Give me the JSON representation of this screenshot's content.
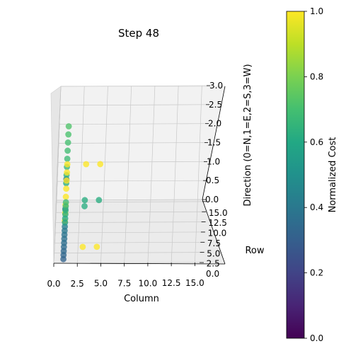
{
  "chart_data": {
    "type": "scatter",
    "projection": "3d",
    "title": "Step 48",
    "xlabel": "Column",
    "ylabel": "Row",
    "zlabel": "Direction (0=N,1=E,2=S,3=W)",
    "xlim": [
      0,
      15.5
    ],
    "ylim": [
      0,
      15.5
    ],
    "zlim": [
      0,
      3
    ],
    "x_ticks": [
      "0.0",
      "2.5",
      "5.0",
      "7.5",
      "10.0",
      "12.5",
      "15.0"
    ],
    "y_ticks": [
      "0.0",
      "2.5",
      "5.0",
      "7.5",
      "10.0",
      "12.5",
      "15.0"
    ],
    "z_ticks": [
      "0.0",
      "0.5",
      "1.0",
      "1.5",
      "2.0",
      "2.5",
      "3.0"
    ],
    "grid": true,
    "colormap": "viridis",
    "colorbar": {
      "label": "Normalized Cost",
      "min": 0.0,
      "max": 1.0,
      "ticks": [
        "0.0",
        "0.2",
        "0.4",
        "0.6",
        "0.8",
        "1.0"
      ]
    },
    "points": [
      {
        "x": 1.0,
        "y": 1,
        "z": 0.0,
        "c": 0.32
      },
      {
        "x": 1.0,
        "y": 2,
        "z": 0.0,
        "c": 0.33
      },
      {
        "x": 1.0,
        "y": 3,
        "z": 0.0,
        "c": 0.34
      },
      {
        "x": 1.0,
        "y": 4,
        "z": 0.0,
        "c": 0.35
      },
      {
        "x": 1.0,
        "y": 5,
        "z": 0.0,
        "c": 0.36
      },
      {
        "x": 1.0,
        "y": 6,
        "z": 0.0,
        "c": 0.37
      },
      {
        "x": 1.0,
        "y": 7,
        "z": 0.0,
        "c": 0.38
      },
      {
        "x": 1.0,
        "y": 8,
        "z": 0.0,
        "c": 0.4
      },
      {
        "x": 1.0,
        "y": 9,
        "z": 0.0,
        "c": 0.42
      },
      {
        "x": 1.0,
        "y": 10,
        "z": 0.0,
        "c": 0.55
      },
      {
        "x": 1.0,
        "y": 11,
        "z": 0.0,
        "c": 0.6
      },
      {
        "x": 1.0,
        "y": 12,
        "z": 0.0,
        "c": 0.62
      },
      {
        "x": 1.0,
        "y": 13,
        "z": 0.0,
        "c": 0.64
      },
      {
        "x": 1.0,
        "y": 14,
        "z": 0.0,
        "c": 0.66
      },
      {
        "x": 1.0,
        "y": 15,
        "z": 0.0,
        "c": 0.68
      },
      {
        "x": 3.0,
        "y": 4,
        "z": 0.0,
        "c": 1.0
      },
      {
        "x": 4.5,
        "y": 4,
        "z": 0.0,
        "c": 1.0
      },
      {
        "x": 3.0,
        "y": 14,
        "z": 0.0,
        "c": 0.62
      },
      {
        "x": 3.0,
        "y": 15.5,
        "z": 0.0,
        "c": 0.62
      },
      {
        "x": 4.5,
        "y": 15.5,
        "z": 0.0,
        "c": 0.62
      },
      {
        "x": 1.0,
        "y": 1,
        "z": 1.0,
        "c": 1.0
      },
      {
        "x": 1.0,
        "y": 3,
        "z": 1.0,
        "c": 1.0
      },
      {
        "x": 1.0,
        "y": 5,
        "z": 1.0,
        "c": 1.0
      },
      {
        "x": 1.0,
        "y": 7,
        "z": 1.0,
        "c": 1.0
      },
      {
        "x": 1.0,
        "y": 9,
        "z": 1.0,
        "c": 1.0
      },
      {
        "x": 1.0,
        "y": 11,
        "z": 1.0,
        "c": 1.0
      },
      {
        "x": 1.0,
        "y": 13,
        "z": 1.0,
        "c": 1.0
      },
      {
        "x": 1.0,
        "y": 15,
        "z": 1.0,
        "c": 1.0
      },
      {
        "x": 1.0,
        "y": 4,
        "z": 1.0,
        "c": 0.4
      },
      {
        "x": 3.0,
        "y": 15,
        "z": 1.0,
        "c": 1.0
      },
      {
        "x": 4.5,
        "y": 15,
        "z": 1.0,
        "c": 1.0
      },
      {
        "x": 1.0,
        "y": 2,
        "z": 2.0,
        "c": 0.4
      },
      {
        "x": 1.0,
        "y": 1,
        "z": 2.0,
        "c": 0.62
      },
      {
        "x": 1.0,
        "y": 3,
        "z": 2.0,
        "c": 0.64
      },
      {
        "x": 1.0,
        "y": 5,
        "z": 2.0,
        "c": 0.66
      },
      {
        "x": 1.0,
        "y": 7,
        "z": 2.0,
        "c": 0.68
      },
      {
        "x": 1.0,
        "y": 9,
        "z": 2.0,
        "c": 0.69
      },
      {
        "x": 1.0,
        "y": 11,
        "z": 2.0,
        "c": 0.7
      },
      {
        "x": 1.0,
        "y": 13,
        "z": 2.0,
        "c": 0.71
      },
      {
        "x": 1.0,
        "y": 15,
        "z": 2.0,
        "c": 0.72
      }
    ]
  }
}
